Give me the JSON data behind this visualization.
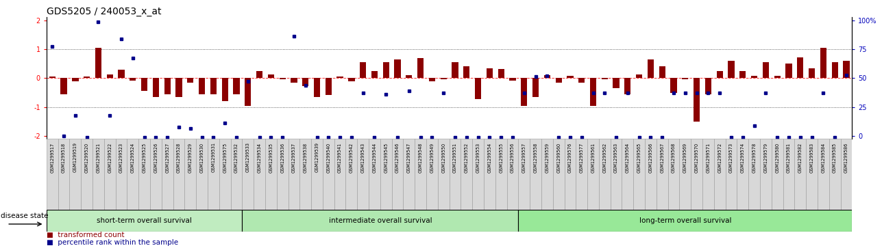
{
  "title": "GDS5205 / 240053_x_at",
  "sample_ids": [
    "GSM1299517",
    "GSM1299518",
    "GSM1299519",
    "GSM1299520",
    "GSM1299521",
    "GSM1299522",
    "GSM1299523",
    "GSM1299524",
    "GSM1299525",
    "GSM1299526",
    "GSM1299527",
    "GSM1299528",
    "GSM1299529",
    "GSM1299530",
    "GSM1299531",
    "GSM1299575",
    "GSM1299532",
    "GSM1299533",
    "GSM1299534",
    "GSM1299535",
    "GSM1299536",
    "GSM1299537",
    "GSM1299538",
    "GSM1299539",
    "GSM1299540",
    "GSM1299541",
    "GSM1299542",
    "GSM1299543",
    "GSM1299544",
    "GSM1299545",
    "GSM1299546",
    "GSM1299547",
    "GSM1299548",
    "GSM1299549",
    "GSM1299550",
    "GSM1299551",
    "GSM1299552",
    "GSM1299553",
    "GSM1299554",
    "GSM1299555",
    "GSM1299556",
    "GSM1299557",
    "GSM1299558",
    "GSM1299559",
    "GSM1299560",
    "GSM1299576",
    "GSM1299577",
    "GSM1299561",
    "GSM1299562",
    "GSM1299563",
    "GSM1299564",
    "GSM1299565",
    "GSM1299566",
    "GSM1299567",
    "GSM1299568",
    "GSM1299569",
    "GSM1299570",
    "GSM1299571",
    "GSM1299572",
    "GSM1299573",
    "GSM1299574",
    "GSM1299578",
    "GSM1299579",
    "GSM1299580",
    "GSM1299581",
    "GSM1299582",
    "GSM1299583",
    "GSM1299584",
    "GSM1299585",
    "GSM1299586"
  ],
  "bar_values": [
    0.05,
    -0.55,
    -0.1,
    0.05,
    1.05,
    0.12,
    0.28,
    -0.08,
    -0.45,
    -0.65,
    -0.55,
    -0.65,
    -0.15,
    -0.55,
    -0.55,
    -0.8,
    -0.55,
    -0.95,
    0.25,
    0.12,
    -0.05,
    -0.15,
    -0.28,
    -0.65,
    -0.58,
    0.05,
    -0.1,
    0.55,
    0.25,
    0.55,
    0.65,
    0.1,
    0.7,
    -0.1,
    -0.05,
    0.55,
    0.42,
    -0.72,
    0.35,
    0.32,
    -0.08,
    -0.95,
    -0.65,
    0.1,
    -0.15,
    0.08,
    -0.15,
    -0.95,
    -0.05,
    -0.35,
    -0.55,
    0.12,
    0.65,
    0.4,
    -0.52,
    -0.05,
    -1.5,
    -0.55,
    0.25,
    0.6,
    0.25,
    0.08,
    0.55,
    0.08,
    0.5,
    0.72,
    0.35,
    1.05,
    0.55,
    0.6
  ],
  "dot_values": [
    1.1,
    -2.0,
    -1.3,
    -2.05,
    1.95,
    -1.3,
    1.35,
    0.7,
    -2.05,
    -2.05,
    -2.05,
    -1.7,
    -1.75,
    -2.05,
    -2.05,
    -1.55,
    -2.05,
    -0.1,
    -2.05,
    -2.05,
    -2.05,
    1.45,
    -0.25,
    -2.05,
    -2.05,
    -2.05,
    -2.05,
    -0.5,
    -2.05,
    -0.55,
    -2.05,
    -0.45,
    -2.05,
    -2.05,
    -0.5,
    -2.05,
    -2.05,
    -2.05,
    -2.05,
    -2.05,
    -2.05,
    -0.5,
    0.05,
    0.08,
    -2.05,
    -2.05,
    -2.05,
    -0.5,
    -0.5,
    -2.05,
    -0.5,
    -2.05,
    -2.05,
    -2.05,
    -0.5,
    -0.5,
    -0.5,
    -0.5,
    -0.5,
    -2.05,
    -2.05,
    -1.65,
    -0.5,
    -2.05,
    -2.05,
    -2.05,
    -2.05,
    -0.5,
    -2.05,
    0.1
  ],
  "group_boundaries": [
    0,
    17,
    41,
    70
  ],
  "group_labels": [
    "short-term overall survival",
    "intermediate overall survival",
    "long-term overall survival"
  ],
  "group_colors": [
    "#c0ecc0",
    "#b0e8b0",
    "#98e898"
  ],
  "bar_color": "#8B0000",
  "dot_color": "#00008B",
  "right_axis_color": "#0000bb",
  "title_fontsize": 10,
  "legend_label_bar": "transformed count",
  "legend_label_dot": "percentile rank within the sample",
  "xlabel_label": "disease state"
}
